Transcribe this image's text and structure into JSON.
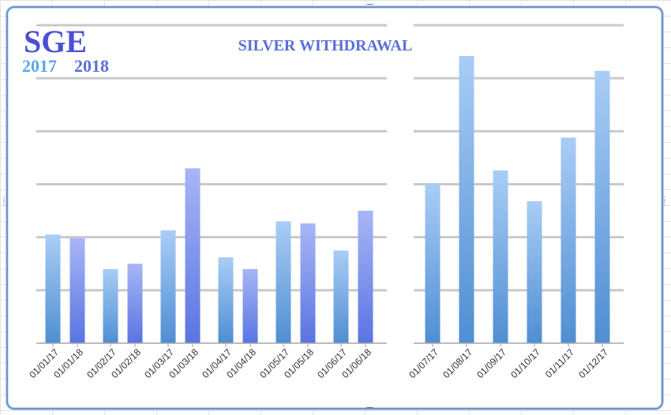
{
  "brand": {
    "logo": "SGE",
    "year_a": "2017",
    "year_b": "2018",
    "logo_color": "#4a4fd6",
    "year_a_color": "#5aa7e8",
    "year_b_color": "#5a6fd8"
  },
  "colors": {
    "series_2017": "#6fa8e6",
    "series_2018": "#6c86ea",
    "gridline": "#c9c9c9",
    "axis": "#a6a6a6",
    "label": "#333333"
  },
  "chart_data": [
    {
      "type": "bar",
      "title": "SILVER WITHDRAWAL",
      "categories": [
        "01/01/17",
        "01/01/18",
        "01/02/17",
        "01/02/18",
        "01/03/17",
        "01/03/18",
        "01/04/17",
        "01/04/18",
        "01/05/17",
        "01/05/18",
        "01/06/17",
        "01/06/18"
      ],
      "values": [
        2.05,
        1.98,
        1.4,
        1.5,
        2.13,
        3.3,
        1.62,
        1.4,
        2.3,
        2.26,
        1.75,
        2.5
      ],
      "series_by_bar": [
        "2017",
        "2018",
        "2017",
        "2018",
        "2017",
        "2018",
        "2017",
        "2018",
        "2017",
        "2018",
        "2017",
        "2018"
      ],
      "ylim": [
        0,
        6
      ],
      "grid": true,
      "xlabel": "",
      "ylabel": ""
    },
    {
      "type": "bar",
      "categories": [
        "01/07/17",
        "01/08/17",
        "01/09/17",
        "01/10/17",
        "01/11/17",
        "01/12/17"
      ],
      "values": [
        3.02,
        5.42,
        3.26,
        2.68,
        3.88,
        5.14
      ],
      "series_by_bar": [
        "2017",
        "2017",
        "2017",
        "2017",
        "2017",
        "2017"
      ],
      "ylim": [
        0,
        6
      ],
      "grid": true,
      "xlabel": "",
      "ylabel": ""
    }
  ]
}
